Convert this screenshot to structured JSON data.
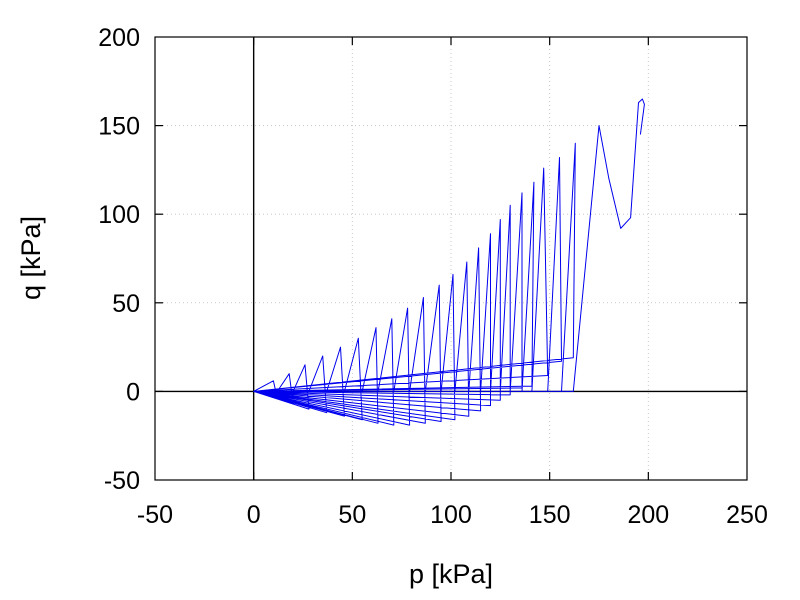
{
  "chart_data": {
    "type": "line",
    "title": "",
    "xlabel": "p [kPa]",
    "ylabel": "q [kPa]",
    "xlim": [
      -50,
      250
    ],
    "ylim": [
      -50,
      200
    ],
    "xticks": [
      -50,
      0,
      50,
      100,
      150,
      200,
      250
    ],
    "yticks": [
      -50,
      0,
      50,
      100,
      150,
      200
    ],
    "xtick_labels": [
      "-50",
      "0",
      "50",
      "100",
      "150",
      "200",
      "250"
    ],
    "ytick_labels": [
      "-50",
      "0",
      "50",
      "100",
      "150",
      "200"
    ],
    "grid": true,
    "zero_lines": true,
    "legend": "none",
    "series_color": "#0000ee",
    "series": [
      {
        "cycles": [
          {
            "p_start": 0,
            "p_peak": 0,
            "q_peak": 0,
            "p_valley": 0,
            "q_valley": 0
          },
          {
            "p_start": 0,
            "p_peak": 10,
            "q_peak": 6,
            "p_valley": 12,
            "q_valley": -4
          },
          {
            "p_start": 12,
            "p_peak": 18,
            "q_peak": 10,
            "p_valley": 20,
            "q_valley": -7
          },
          {
            "p_start": 20,
            "p_peak": 26,
            "q_peak": 15,
            "p_valley": 28,
            "q_valley": -10
          },
          {
            "p_start": 28,
            "p_peak": 35,
            "q_peak": 20,
            "p_valley": 37,
            "q_valley": -12
          },
          {
            "p_start": 37,
            "p_peak": 44,
            "q_peak": 25,
            "p_valley": 46,
            "q_valley": -14
          },
          {
            "p_start": 46,
            "p_peak": 53,
            "q_peak": 30,
            "p_valley": 55,
            "q_valley": -16
          },
          {
            "p_start": 55,
            "p_peak": 62,
            "q_peak": 36,
            "p_valley": 63,
            "q_valley": -18
          },
          {
            "p_start": 63,
            "p_peak": 70,
            "q_peak": 41,
            "p_valley": 71,
            "q_valley": -19
          },
          {
            "p_start": 71,
            "p_peak": 78,
            "q_peak": 47,
            "p_valley": 79,
            "q_valley": -19
          },
          {
            "p_start": 79,
            "p_peak": 86,
            "q_peak": 53,
            "p_valley": 87,
            "q_valley": -18
          },
          {
            "p_start": 87,
            "p_peak": 94,
            "q_peak": 60,
            "p_valley": 95,
            "q_valley": -17
          },
          {
            "p_start": 95,
            "p_peak": 101,
            "q_peak": 66,
            "p_valley": 102,
            "q_valley": -16
          },
          {
            "p_start": 102,
            "p_peak": 108,
            "q_peak": 73,
            "p_valley": 109,
            "q_valley": -14
          },
          {
            "p_start": 109,
            "p_peak": 114,
            "q_peak": 81,
            "p_valley": 115,
            "q_valley": -11
          },
          {
            "p_start": 115,
            "p_peak": 120,
            "q_peak": 89,
            "p_valley": 120,
            "q_valley": -8
          },
          {
            "p_start": 120,
            "p_peak": 125,
            "q_peak": 97,
            "p_valley": 125,
            "q_valley": -5
          },
          {
            "p_start": 125,
            "p_peak": 130,
            "q_peak": 105,
            "p_valley": 130,
            "q_valley": -2
          },
          {
            "p_start": 130,
            "p_peak": 136,
            "q_peak": 112,
            "p_valley": 136,
            "q_valley": 2
          },
          {
            "p_start": 136,
            "p_peak": 142,
            "q_peak": 118,
            "p_valley": 141,
            "q_valley": 3
          },
          {
            "p_start": 141,
            "p_peak": 147,
            "q_peak": 126,
            "p_valley": 149,
            "q_valley": 9
          },
          {
            "p_start": 149,
            "p_peak": 155,
            "q_peak": 132,
            "p_valley": 156,
            "q_valley": 17
          },
          {
            "p_start": 156,
            "p_peak": 163,
            "q_peak": 140,
            "p_valley": 162,
            "q_valley": 19
          },
          {
            "p_start": 162,
            "p_peak": 175,
            "q_peak": 150,
            "p_valley": 175,
            "q_valley": 150
          }
        ],
        "final_path": [
          [
            175,
            150
          ],
          [
            180,
            120
          ],
          [
            186,
            92
          ],
          [
            191,
            98
          ],
          [
            195,
            163
          ],
          [
            197,
            165
          ],
          [
            198,
            162
          ],
          [
            196,
            145
          ]
        ]
      }
    ]
  }
}
